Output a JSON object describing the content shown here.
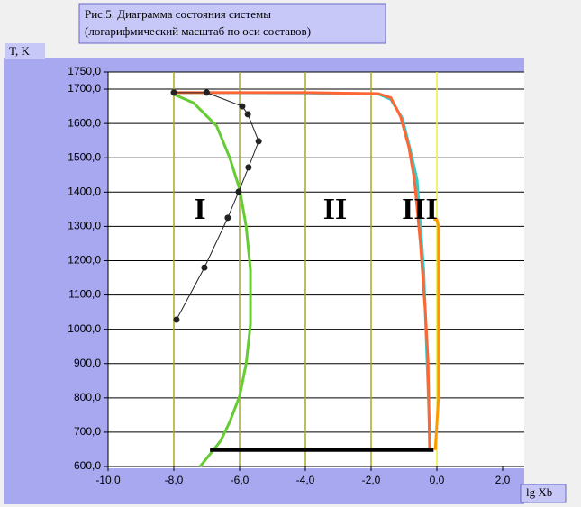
{
  "chart_data": {
    "type": "line",
    "title": "Рис.5. Диаграмма состояния системы",
    "subtitle": "(логарифмический масштаб по оси составов)",
    "y_label": "T, K",
    "x_label": "lg Xb",
    "annotations": [
      "I",
      "II",
      "III"
    ],
    "xlim": [
      -10,
      2
    ],
    "ylim": [
      600,
      1750
    ],
    "xticks": [
      {
        "value": -10,
        "label": "-10,0"
      },
      {
        "value": -8,
        "label": "-8,0"
      },
      {
        "value": -6,
        "label": "-6,0"
      },
      {
        "value": -4,
        "label": "-4,0"
      },
      {
        "value": -2,
        "label": "-2,0"
      },
      {
        "value": 0,
        "label": "0,0"
      },
      {
        "value": 2,
        "label": "2,0"
      }
    ],
    "yticks": [
      {
        "value": 600,
        "label": "600,0"
      },
      {
        "value": 700,
        "label": "700,0"
      },
      {
        "value": 800,
        "label": "800,0"
      },
      {
        "value": 900,
        "label": "900,0"
      },
      {
        "value": 1000,
        "label": "1000,0"
      },
      {
        "value": 1100,
        "label": "1100,0"
      },
      {
        "value": 1200,
        "label": "1200,0"
      },
      {
        "value": 1300,
        "label": "1300,0"
      },
      {
        "value": 1400,
        "label": "1400,0"
      },
      {
        "value": 1500,
        "label": "1500,0"
      },
      {
        "value": 1600,
        "label": "1600,0"
      },
      {
        "value": 1700,
        "label": "1700,0"
      },
      {
        "value": 1750,
        "label": "1750,0"
      }
    ],
    "grid": true,
    "series": [
      {
        "color": "#66cc33",
        "x": [
          -8.0,
          -7.4,
          -6.7,
          -6.3,
          -6.0,
          -5.8,
          -5.67,
          -5.67,
          -5.8,
          -6.0,
          -6.3,
          -6.58,
          -7.2
        ],
        "values": [
          1685,
          1660,
          1593,
          1500,
          1409,
          1300,
          1173,
          1015,
          900,
          805,
          730,
          674,
          600
        ]
      },
      {
        "color": "#33cccc",
        "x": [
          -8.0,
          -4.0,
          -1.78,
          -1.4,
          -1.05,
          -0.8,
          -0.6,
          -0.4,
          -0.3,
          -0.25,
          -0.2
        ],
        "values": [
          1690,
          1689,
          1686,
          1670,
          1615,
          1520,
          1435,
          1173,
          910,
          780,
          648
        ]
      },
      {
        "color": "#ff6633",
        "x": [
          -8.0,
          -4.0,
          -1.78,
          -1.4,
          -1.1,
          -0.85,
          -0.68,
          -0.5,
          -0.35,
          -0.27,
          -0.22
        ],
        "values": [
          1690,
          1690,
          1687,
          1675,
          1619,
          1530,
          1435,
          1250,
          1050,
          910,
          648
        ]
      },
      {
        "color": "#ff9900",
        "x": [
          -0.1,
          0.0,
          0.05,
          0.05,
          -0.05
        ],
        "values": [
          1320,
          1320,
          1300,
          800,
          648
        ]
      },
      {
        "color": "#222222",
        "markers": true,
        "x": [
          -8.0,
          -7.0,
          -5.92,
          -5.75,
          -5.42,
          -5.73,
          -6.03,
          -6.36,
          -7.07,
          -7.92
        ],
        "values": [
          1690,
          1690,
          1650,
          1627,
          1548,
          1472,
          1401,
          1325,
          1180,
          1028
        ]
      },
      {
        "color": "#000000",
        "width": 4,
        "x": [
          -6.9,
          -0.1
        ],
        "values": [
          648,
          648
        ]
      }
    ]
  }
}
